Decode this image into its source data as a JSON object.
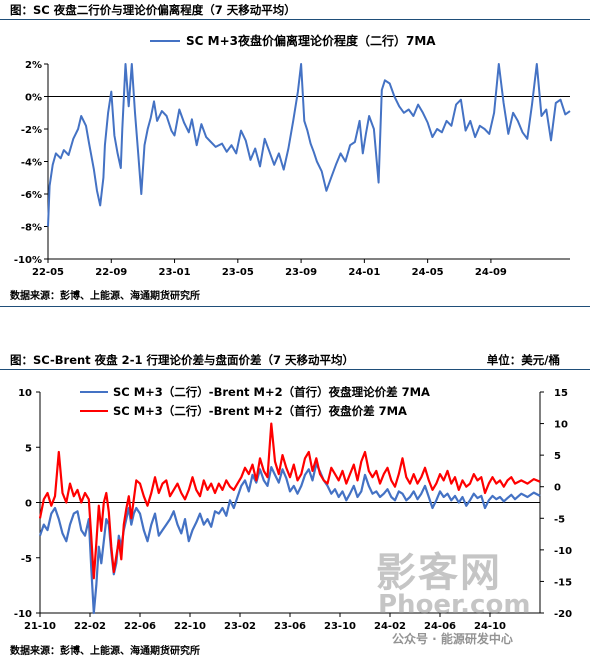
{
  "figures": [
    {
      "caption": "图：SC 夜盘二行价与理论价偏离程度（7 天移动平均）",
      "source": "数据来源：彭博、上能源、海通期货研究所"
    },
    {
      "caption": "图：SC-Brent 夜盘 2-1 行理论价差与盘面价差（7 天移动平均）",
      "unit": "单位：美元/桶",
      "source": "数据来源：彭博、上能源、海通期货研究所"
    }
  ],
  "watermarks": {
    "logo": "影客网",
    "site": "Phoer.com",
    "wechat": "公众号 · 能源研发中心"
  },
  "chart_data": [
    {
      "type": "line",
      "title": "",
      "legend_position": "top",
      "y_unit": "%",
      "ylim": [
        -10,
        2
      ],
      "yticks": [
        2,
        0,
        -2,
        -4,
        -6,
        -8,
        -10
      ],
      "ytick_labels": [
        "2%",
        "0%",
        "-2%",
        "-4%",
        "-6%",
        "-8%",
        "-10%"
      ],
      "x_range": [
        0,
        33
      ],
      "xticks": [
        0,
        4,
        8,
        12,
        16,
        20,
        24,
        28
      ],
      "xtick_labels": [
        "22-05",
        "22-09",
        "23-01",
        "23-05",
        "23-09",
        "24-01",
        "24-05",
        "24-09"
      ],
      "series": [
        {
          "name": "SC M+3夜盘价偏离理论价程度（二行）7MA",
          "color": "#4472c4",
          "x": [
            0,
            0.1,
            0.3,
            0.5,
            0.8,
            1.0,
            1.3,
            1.6,
            1.9,
            2.1,
            2.4,
            2.6,
            2.9,
            3.1,
            3.3,
            3.5,
            3.6,
            3.8,
            4.0,
            4.2,
            4.4,
            4.6,
            4.7,
            4.9,
            5.1,
            5.3,
            5.5,
            5.7,
            5.9,
            6.1,
            6.3,
            6.5,
            6.7,
            6.9,
            7.2,
            7.5,
            7.8,
            8.0,
            8.3,
            8.6,
            8.9,
            9.1,
            9.4,
            9.7,
            10.0,
            10.3,
            10.6,
            11.0,
            11.3,
            11.6,
            11.9,
            12.2,
            12.5,
            12.8,
            13.1,
            13.4,
            13.7,
            14.0,
            14.3,
            14.6,
            14.9,
            15.2,
            15.5,
            15.8,
            16.0,
            16.2,
            16.4,
            16.6,
            16.8,
            17.0,
            17.3,
            17.6,
            17.9,
            18.2,
            18.5,
            18.8,
            19.1,
            19.4,
            19.7,
            19.9,
            20.1,
            20.3,
            20.6,
            20.9,
            21.1,
            21.3,
            21.6,
            21.9,
            22.2,
            22.5,
            22.8,
            23.1,
            23.4,
            23.7,
            24.0,
            24.3,
            24.6,
            24.9,
            25.2,
            25.5,
            25.8,
            26.1,
            26.4,
            26.7,
            27.0,
            27.3,
            27.6,
            27.9,
            28.2,
            28.5,
            28.8,
            29.1,
            29.4,
            29.7,
            30.0,
            30.3,
            30.6,
            30.9,
            31.2,
            31.5,
            31.8,
            32.1,
            32.4,
            32.7,
            33.0
          ],
          "y": [
            -8.0,
            -5.5,
            -4.2,
            -3.5,
            -3.8,
            -3.3,
            -3.6,
            -2.6,
            -2.0,
            -1.2,
            -1.8,
            -2.9,
            -4.5,
            -5.8,
            -6.7,
            -5.0,
            -3.0,
            -1.0,
            0.3,
            -2.4,
            -3.5,
            -4.4,
            -2.0,
            2.0,
            -0.6,
            2.0,
            -1.0,
            -3.5,
            -6.0,
            -3.0,
            -2.0,
            -1.3,
            -0.3,
            -1.5,
            -0.9,
            -1.2,
            -2.1,
            -2.4,
            -0.8,
            -1.6,
            -2.2,
            -1.4,
            -3.0,
            -1.7,
            -2.5,
            -2.8,
            -3.1,
            -2.9,
            -3.4,
            -3.0,
            -3.5,
            -2.1,
            -2.7,
            -3.9,
            -3.2,
            -4.3,
            -2.6,
            -3.4,
            -4.2,
            -3.5,
            -4.5,
            -3.2,
            -1.5,
            0.3,
            2.0,
            -1.5,
            -2.1,
            -2.9,
            -3.4,
            -4.0,
            -4.6,
            -5.8,
            -5.0,
            -4.2,
            -3.5,
            -4.0,
            -3.0,
            -2.8,
            -1.5,
            -3.5,
            -2.3,
            -1.2,
            -2.0,
            -5.3,
            0.4,
            1.0,
            0.8,
            0.0,
            -0.6,
            -1.0,
            -0.8,
            -1.2,
            -0.5,
            -1.0,
            -1.6,
            -2.5,
            -2.0,
            -2.2,
            -1.5,
            -1.8,
            -0.5,
            -0.2,
            -2.1,
            -1.5,
            -2.5,
            -1.8,
            -2.0,
            -2.3,
            -1.0,
            2.0,
            -0.4,
            -2.3,
            -1.0,
            -1.5,
            -2.2,
            -2.6,
            -0.5,
            2.0,
            -1.2,
            -0.8,
            -2.7,
            -0.4,
            -0.2,
            -1.1,
            -0.9
          ]
        }
      ]
    },
    {
      "type": "line",
      "title": "",
      "legend_position": "top",
      "y_left": {
        "range": [
          -10,
          10
        ],
        "ticks": [
          10,
          5,
          0,
          -5,
          -10
        ]
      },
      "y_right": {
        "range": [
          -20,
          15
        ],
        "ticks": [
          15,
          10,
          5,
          0,
          -5,
          -10,
          -15,
          -20
        ]
      },
      "x_range": [
        0,
        40
      ],
      "xticks": [
        0,
        4,
        8,
        12,
        16,
        20,
        24,
        28,
        32,
        36
      ],
      "xtick_labels": [
        "21-10",
        "22-02",
        "22-06",
        "22-10",
        "23-02",
        "23-06",
        "23-10",
        "24-02",
        "24-06",
        "24-10"
      ],
      "series": [
        {
          "name": "SC M+3（二行）-Brent M+2（首行）夜盘理论价差 7MA",
          "color": "#4472c4",
          "axis": "left",
          "x": [
            0,
            0.3,
            0.6,
            0.9,
            1.2,
            1.5,
            1.8,
            2.1,
            2.4,
            2.7,
            3.0,
            3.3,
            3.6,
            3.9,
            4.1,
            4.3,
            4.5,
            4.7,
            4.9,
            5.1,
            5.3,
            5.5,
            5.7,
            5.9,
            6.1,
            6.3,
            6.5,
            6.7,
            6.9,
            7.1,
            7.3,
            7.5,
            7.7,
            8.0,
            8.3,
            8.6,
            8.9,
            9.2,
            9.5,
            9.8,
            10.1,
            10.4,
            10.7,
            11.0,
            11.3,
            11.6,
            11.9,
            12.2,
            12.5,
            12.8,
            13.1,
            13.4,
            13.7,
            14.0,
            14.3,
            14.6,
            14.9,
            15.2,
            15.5,
            15.8,
            16.1,
            16.4,
            16.7,
            17.0,
            17.3,
            17.6,
            17.9,
            18.2,
            18.5,
            18.8,
            19.1,
            19.4,
            19.7,
            20.0,
            20.3,
            20.6,
            20.9,
            21.2,
            21.5,
            21.8,
            22.1,
            22.4,
            22.7,
            23.0,
            23.3,
            23.6,
            23.9,
            24.2,
            24.5,
            24.8,
            25.1,
            25.4,
            25.7,
            26.0,
            26.3,
            26.6,
            26.9,
            27.2,
            27.5,
            27.8,
            28.1,
            28.4,
            28.7,
            29.0,
            29.3,
            29.6,
            29.9,
            30.2,
            30.5,
            30.8,
            31.1,
            31.4,
            31.7,
            32.0,
            32.3,
            32.6,
            32.9,
            33.2,
            33.5,
            33.8,
            34.1,
            34.4,
            34.7,
            35.0,
            35.3,
            35.6,
            35.9,
            36.2,
            36.5,
            36.8,
            37.1,
            37.4,
            37.7,
            38.0,
            38.5,
            39.0,
            39.5,
            40.0
          ],
          "y": [
            -3.0,
            -2.0,
            -2.5,
            -1.0,
            -0.5,
            -1.5,
            -2.8,
            -3.5,
            -2.0,
            -1.0,
            -0.8,
            -2.5,
            -3.0,
            -1.5,
            -6.0,
            -10.0,
            -7.5,
            -4.0,
            -5.5,
            -3.5,
            -1.5,
            -2.0,
            -4.5,
            -6.5,
            -5.5,
            -3.0,
            -4.0,
            -2.5,
            -1.5,
            -0.5,
            -2.0,
            -1.0,
            -0.5,
            -1.0,
            -2.5,
            -3.5,
            -2.0,
            -1.0,
            -3.0,
            -2.5,
            -2.0,
            -1.5,
            -0.8,
            -2.0,
            -2.8,
            -1.5,
            -3.5,
            -2.5,
            -1.8,
            -1.0,
            -2.0,
            -1.5,
            -2.2,
            -0.8,
            -1.0,
            -0.5,
            -1.2,
            0.2,
            -0.5,
            0.5,
            1.5,
            2.0,
            1.0,
            2.5,
            1.8,
            3.0,
            2.0,
            1.5,
            3.2,
            2.5,
            1.8,
            3.0,
            2.2,
            1.0,
            1.5,
            0.8,
            1.5,
            2.5,
            3.0,
            2.0,
            3.5,
            2.8,
            2.0,
            1.5,
            0.8,
            1.2,
            0.5,
            1.0,
            0.2,
            0.8,
            1.5,
            0.5,
            1.0,
            2.5,
            1.5,
            0.8,
            1.0,
            0.5,
            0.8,
            1.2,
            0.5,
            0.2,
            1.0,
            0.8,
            0.2,
            0.5,
            1.0,
            0.3,
            0.8,
            1.5,
            0.5,
            -0.5,
            0.2,
            1.0,
            0.5,
            0.8,
            0.2,
            0.6,
            0.0,
            0.5,
            -0.3,
            0.2,
            0.8,
            0.4,
            0.6,
            -0.5,
            0.2,
            0.6,
            0.3,
            0.5,
            0.1,
            0.4,
            0.7,
            0.3,
            0.8,
            0.5,
            0.9,
            0.6
          ]
        },
        {
          "name": "SC M+3（二行）-Brent M+2（首行）夜盘价差 7MA",
          "color": "#ff0000",
          "axis": "right",
          "x": [
            0,
            0.3,
            0.6,
            0.9,
            1.2,
            1.5,
            1.8,
            2.1,
            2.4,
            2.7,
            3.0,
            3.3,
            3.6,
            3.9,
            4.1,
            4.3,
            4.5,
            4.7,
            4.9,
            5.1,
            5.3,
            5.5,
            5.7,
            5.9,
            6.1,
            6.3,
            6.5,
            6.7,
            6.9,
            7.1,
            7.3,
            7.5,
            7.7,
            8.0,
            8.3,
            8.6,
            8.9,
            9.2,
            9.5,
            9.8,
            10.1,
            10.4,
            10.7,
            11.0,
            11.3,
            11.6,
            11.9,
            12.2,
            12.5,
            12.8,
            13.1,
            13.4,
            13.7,
            14.0,
            14.3,
            14.6,
            14.9,
            15.2,
            15.5,
            15.8,
            16.1,
            16.4,
            16.7,
            17.0,
            17.3,
            17.6,
            17.9,
            18.2,
            18.5,
            18.8,
            19.1,
            19.4,
            19.7,
            20.0,
            20.3,
            20.6,
            20.9,
            21.2,
            21.5,
            21.8,
            22.1,
            22.4,
            22.7,
            23.0,
            23.3,
            23.6,
            23.9,
            24.2,
            24.5,
            24.8,
            25.1,
            25.4,
            25.7,
            26.0,
            26.3,
            26.6,
            26.9,
            27.2,
            27.5,
            27.8,
            28.1,
            28.4,
            28.7,
            29.0,
            29.3,
            29.6,
            29.9,
            30.2,
            30.5,
            30.8,
            31.1,
            31.4,
            31.7,
            32.0,
            32.3,
            32.6,
            32.9,
            33.2,
            33.5,
            33.8,
            34.1,
            34.4,
            34.7,
            35.0,
            35.3,
            35.6,
            35.9,
            36.2,
            36.5,
            36.8,
            37.1,
            37.4,
            37.7,
            38.0,
            38.5,
            39.0,
            39.5,
            40.0
          ],
          "y": [
            -5.0,
            -2.0,
            -1.0,
            -3.0,
            -1.5,
            5.5,
            -1.0,
            -2.5,
            0.5,
            -1.5,
            -0.5,
            -2.5,
            -1.0,
            -2.0,
            -8.0,
            -14.5,
            -9.0,
            -3.0,
            -7.0,
            -2.5,
            -1.0,
            -4.0,
            -9.5,
            -13.5,
            -11.0,
            -8.5,
            -11.5,
            -6.0,
            -3.5,
            -1.5,
            -5.0,
            -2.0,
            1.0,
            0.5,
            -1.5,
            -3.0,
            -1.0,
            1.5,
            -1.0,
            0.5,
            1.0,
            -1.5,
            -0.5,
            0.5,
            -1.0,
            -2.0,
            -0.5,
            1.5,
            -0.5,
            -1.5,
            1.0,
            -0.5,
            0.5,
            -1.0,
            0.5,
            -0.5,
            1.0,
            0.0,
            -0.5,
            0.5,
            1.5,
            3.0,
            2.0,
            3.5,
            1.0,
            4.5,
            2.5,
            1.5,
            10.0,
            4.0,
            2.0,
            5.0,
            3.0,
            1.5,
            3.5,
            1.0,
            2.0,
            4.5,
            5.5,
            2.5,
            4.5,
            2.0,
            1.0,
            0.5,
            3.0,
            2.0,
            1.0,
            2.5,
            0.5,
            2.0,
            3.5,
            1.0,
            4.0,
            5.5,
            2.5,
            1.5,
            2.5,
            0.5,
            2.0,
            3.0,
            1.0,
            0.0,
            2.0,
            4.5,
            1.5,
            0.5,
            2.0,
            0.5,
            1.5,
            3.0,
            1.0,
            -0.5,
            0.5,
            2.0,
            1.0,
            2.5,
            0.5,
            1.5,
            -0.5,
            1.0,
            0.0,
            0.5,
            2.0,
            1.0,
            1.5,
            -1.0,
            0.5,
            1.5,
            0.5,
            1.0,
            0.0,
            1.0,
            1.5,
            0.5,
            1.0,
            0.5,
            1.2,
            0.8
          ]
        }
      ]
    }
  ]
}
